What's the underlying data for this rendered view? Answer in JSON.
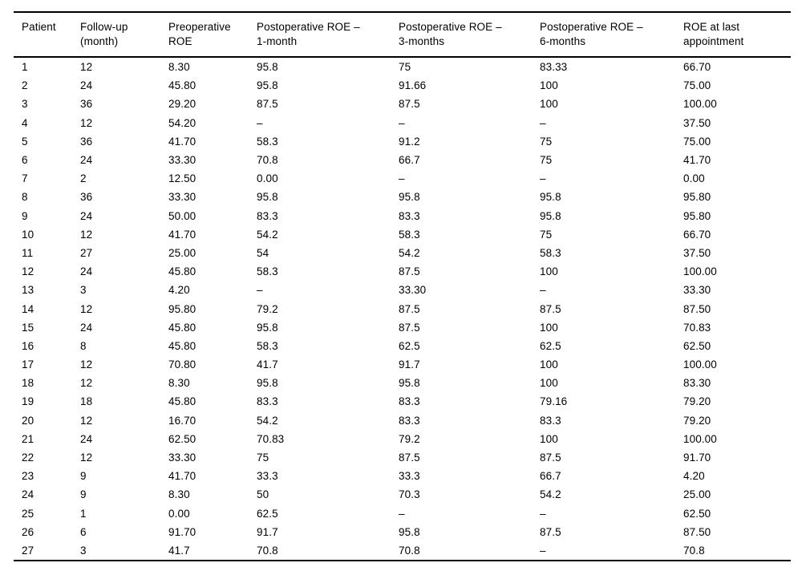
{
  "table": {
    "name": "Patient ROE scores table",
    "columns": [
      {
        "id": "patient",
        "line1": "Patient",
        "line2": ""
      },
      {
        "id": "follow-up",
        "line1": "Follow-up",
        "line2": "(month)"
      },
      {
        "id": "preop-roe",
        "line1": "Preoperative",
        "line2": "ROE"
      },
      {
        "id": "postop-1m",
        "line1": "Postoperative ROE –",
        "line2": "1-month"
      },
      {
        "id": "postop-3m",
        "line1": "Postoperative ROE –",
        "line2": "3-months"
      },
      {
        "id": "postop-6m",
        "line1": "Postoperative ROE –",
        "line2": "6-months"
      },
      {
        "id": "roe-last",
        "line1": "ROE at last",
        "line2": "appointment"
      }
    ],
    "missing_value_symbol": "–",
    "rows": [
      [
        "1",
        "12",
        "8.30",
        "95.8",
        "75",
        "83.33",
        "66.70"
      ],
      [
        "2",
        "24",
        "45.80",
        "95.8",
        "91.66",
        "100",
        "75.00"
      ],
      [
        "3",
        "36",
        "29.20",
        "87.5",
        "87.5",
        "100",
        "100.00"
      ],
      [
        "4",
        "12",
        "54.20",
        "–",
        "–",
        "–",
        "37.50"
      ],
      [
        "5",
        "36",
        "41.70",
        "58.3",
        "91.2",
        "75",
        "75.00"
      ],
      [
        "6",
        "24",
        "33.30",
        "70.8",
        "66.7",
        "75",
        "41.70"
      ],
      [
        "7",
        "2",
        "12.50",
        "0.00",
        "–",
        "–",
        "0.00"
      ],
      [
        "8",
        "36",
        "33.30",
        "95.8",
        "95.8",
        "95.8",
        "95.80"
      ],
      [
        "9",
        "24",
        "50.00",
        "83.3",
        "83.3",
        "95.8",
        "95.80"
      ],
      [
        "10",
        "12",
        "41.70",
        "54.2",
        "58.3",
        "75",
        "66.70"
      ],
      [
        "11",
        "27",
        "25.00",
        "54",
        "54.2",
        "58.3",
        "37.50"
      ],
      [
        "12",
        "24",
        "45.80",
        "58.3",
        "87.5",
        "100",
        "100.00"
      ],
      [
        "13",
        "3",
        "4.20",
        "–",
        "33.30",
        "–",
        "33.30"
      ],
      [
        "14",
        "12",
        "95.80",
        "79.2",
        "87.5",
        "87.5",
        "87.50"
      ],
      [
        "15",
        "24",
        "45.80",
        "95.8",
        "87.5",
        "100",
        "70.83"
      ],
      [
        "16",
        "8",
        "45.80",
        "58.3",
        "62.5",
        "62.5",
        "62.50"
      ],
      [
        "17",
        "12",
        "70.80",
        "41.7",
        "91.7",
        "100",
        "100.00"
      ],
      [
        "18",
        "12",
        "8.30",
        "95.8",
        "95.8",
        "100",
        "83.30"
      ],
      [
        "19",
        "18",
        "45.80",
        "83.3",
        "83.3",
        "79.16",
        "79.20"
      ],
      [
        "20",
        "12",
        "16.70",
        "54.2",
        "83.3",
        "83.3",
        "79.20"
      ],
      [
        "21",
        "24",
        "62.50",
        "70.83",
        "79.2",
        "100",
        "100.00"
      ],
      [
        "22",
        "12",
        "33.30",
        "75",
        "87.5",
        "87.5",
        "91.70"
      ],
      [
        "23",
        "9",
        "41.70",
        "33.3",
        "33.3",
        "66.7",
        "4.20"
      ],
      [
        "24",
        "9",
        "8.30",
        "50",
        "70.3",
        "54.2",
        "25.00"
      ],
      [
        "25",
        "1",
        "0.00",
        "62.5",
        "–",
        "–",
        "62.50"
      ],
      [
        "26",
        "6",
        "91.70",
        "91.7",
        "95.8",
        "87.5",
        "87.50"
      ],
      [
        "27",
        "3",
        "41.7",
        "70.8",
        "70.8",
        "–",
        "70.8"
      ]
    ]
  }
}
